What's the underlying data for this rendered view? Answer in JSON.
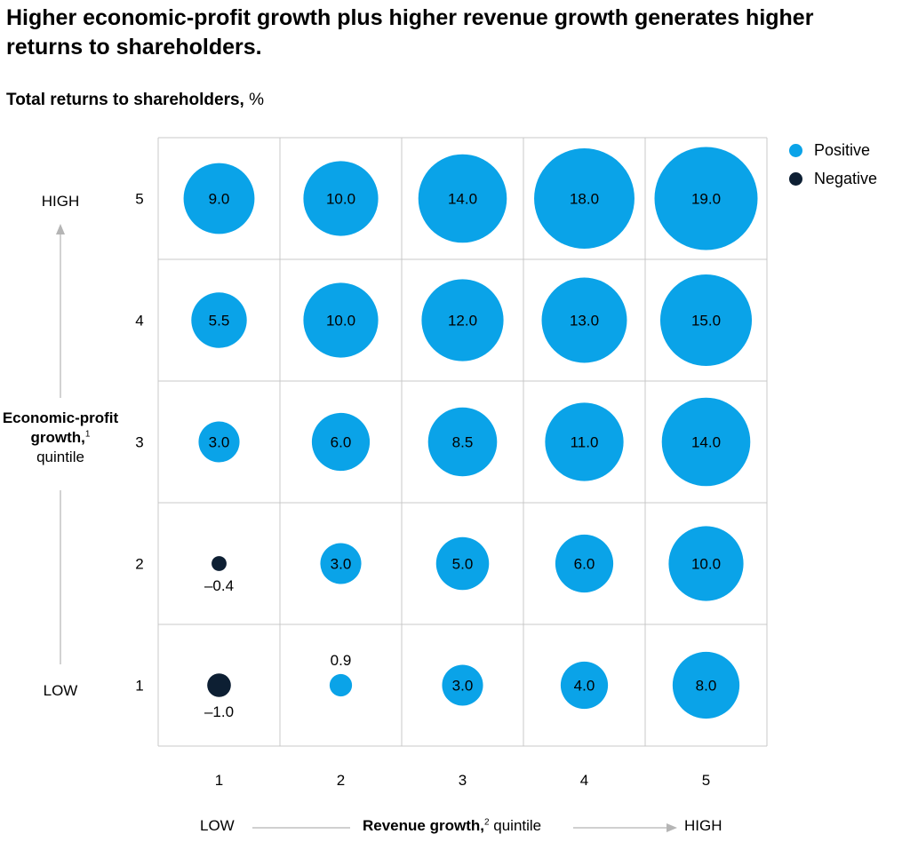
{
  "chart_data": {
    "type": "scatter",
    "title": "Higher economic-profit growth plus higher revenue growth generates higher returns to shareholders.",
    "subtitle_bold": "Total returns to shareholders,",
    "subtitle_unit": "%",
    "xlabel_bold": "Revenue growth,",
    "xlabel_sup": "2",
    "xlabel_rest": "quintile",
    "x_low": "LOW",
    "x_high": "HIGH",
    "ylabel_bold": "Economic-profit growth,",
    "ylabel_sup": "1",
    "ylabel_rest": "quintile",
    "y_low": "LOW",
    "y_high": "HIGH",
    "x_ticks": [
      "1",
      "2",
      "3",
      "4",
      "5"
    ],
    "y_ticks": [
      "1",
      "2",
      "3",
      "4",
      "5"
    ],
    "legend": [
      {
        "label": "Positive",
        "color": "#0aa3e8"
      },
      {
        "label": "Negative",
        "color": "#0d1f33"
      }
    ],
    "legend_position": "top-right",
    "grid": true,
    "rows": [
      {
        "economic_profit_quintile": 5,
        "values": [
          9.0,
          10.0,
          14.0,
          18.0,
          19.0
        ],
        "labels": [
          "9.0",
          "10.0",
          "14.0",
          "18.0",
          "19.0"
        ]
      },
      {
        "economic_profit_quintile": 4,
        "values": [
          5.5,
          10.0,
          12.0,
          13.0,
          15.0
        ],
        "labels": [
          "5.5",
          "10.0",
          "12.0",
          "13.0",
          "15.0"
        ]
      },
      {
        "economic_profit_quintile": 3,
        "values": [
          3.0,
          6.0,
          8.5,
          11.0,
          14.0
        ],
        "labels": [
          "3.0",
          "6.0",
          "8.5",
          "11.0",
          "14.0"
        ]
      },
      {
        "economic_profit_quintile": 2,
        "values": [
          -0.4,
          3.0,
          5.0,
          6.0,
          10.0
        ],
        "labels": [
          "–0.4",
          "3.0",
          "5.0",
          "6.0",
          "10.0"
        ]
      },
      {
        "economic_profit_quintile": 1,
        "values": [
          -1.0,
          0.9,
          3.0,
          4.0,
          8.0
        ],
        "labels": [
          "–1.0",
          "0.9",
          "3.0",
          "4.0",
          "8.0"
        ]
      }
    ]
  }
}
